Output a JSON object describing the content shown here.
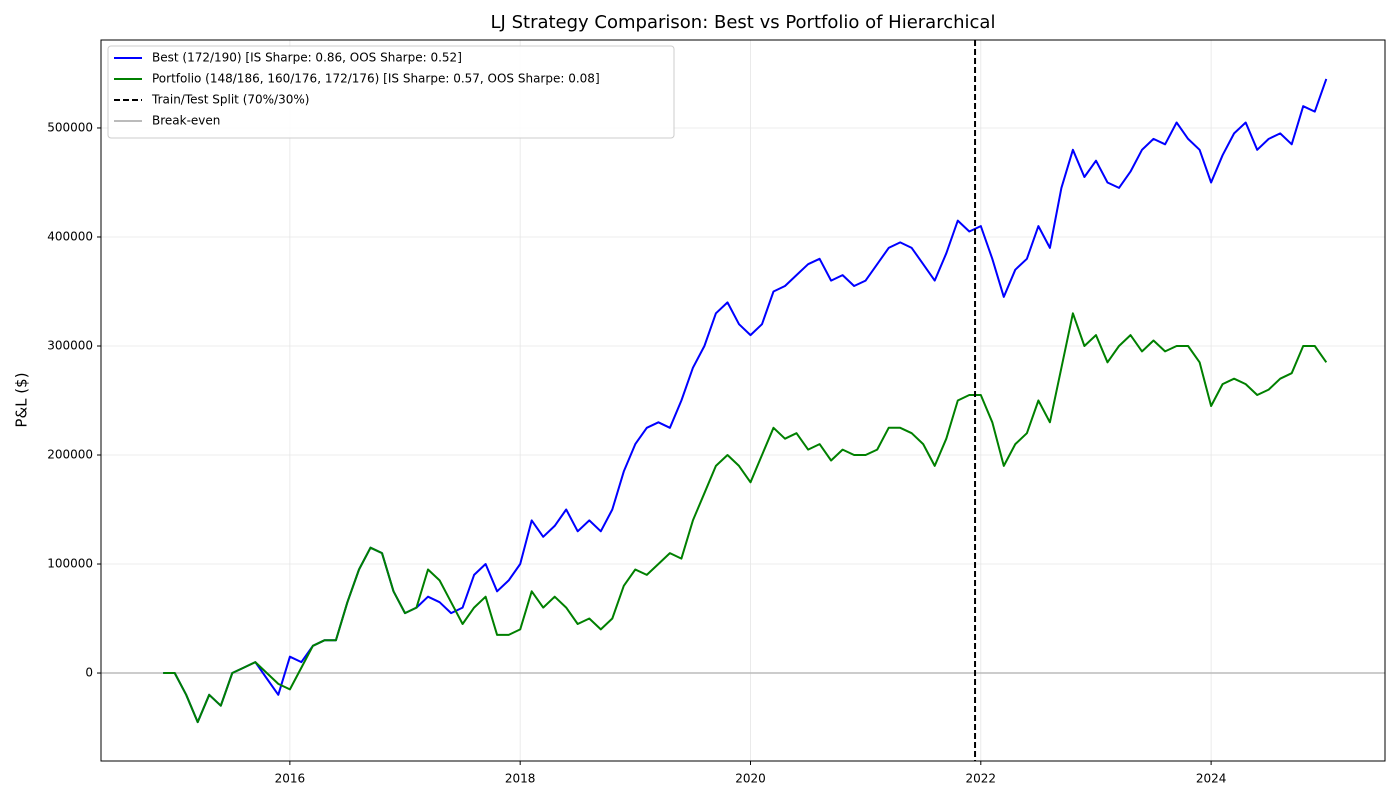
{
  "chart_data": {
    "type": "line",
    "title": "LJ Strategy Comparison: Best vs Portfolio of Hierarchical",
    "y_label": "P&L ($)",
    "x": [
      2014.9,
      2015.0,
      2015.1,
      2015.2,
      2015.3,
      2015.4,
      2015.5,
      2015.6,
      2015.7,
      2015.8,
      2015.9,
      2016.0,
      2016.1,
      2016.2,
      2016.3,
      2016.4,
      2016.5,
      2016.6,
      2016.7,
      2016.8,
      2016.9,
      2017.0,
      2017.1,
      2017.2,
      2017.3,
      2017.4,
      2017.5,
      2017.6,
      2017.7,
      2017.8,
      2017.9,
      2018.0,
      2018.1,
      2018.2,
      2018.3,
      2018.4,
      2018.5,
      2018.6,
      2018.7,
      2018.8,
      2018.9,
      2019.0,
      2019.1,
      2019.2,
      2019.3,
      2019.4,
      2019.5,
      2019.6,
      2019.7,
      2019.8,
      2019.9,
      2020.0,
      2020.1,
      2020.2,
      2020.3,
      2020.4,
      2020.5,
      2020.6,
      2020.7,
      2020.8,
      2020.9,
      2021.0,
      2021.1,
      2021.2,
      2021.3,
      2021.4,
      2021.5,
      2021.6,
      2021.7,
      2021.8,
      2021.9,
      2022.0,
      2022.1,
      2022.2,
      2022.3,
      2022.4,
      2022.5,
      2022.6,
      2022.7,
      2022.8,
      2022.9,
      2023.0,
      2023.1,
      2023.2,
      2023.3,
      2023.4,
      2023.5,
      2023.6,
      2023.7,
      2023.8,
      2023.9,
      2024.0,
      2024.1,
      2024.2,
      2024.3,
      2024.4,
      2024.5,
      2024.6,
      2024.7,
      2024.8,
      2024.9,
      2025.0
    ],
    "series": [
      {
        "name": "Best (172/190) [IS Sharpe: 0.86, OOS Sharpe: 0.52]",
        "color": "#0000ff",
        "values": [
          0,
          0,
          -20000,
          -45000,
          -20000,
          -30000,
          0,
          5000,
          10000,
          -5000,
          -20000,
          15000,
          10000,
          25000,
          30000,
          30000,
          65000,
          95000,
          115000,
          110000,
          75000,
          55000,
          60000,
          70000,
          65000,
          55000,
          60000,
          90000,
          100000,
          75000,
          85000,
          100000,
          140000,
          125000,
          135000,
          150000,
          130000,
          140000,
          130000,
          150000,
          185000,
          210000,
          225000,
          230000,
          225000,
          250000,
          280000,
          300000,
          330000,
          340000,
          320000,
          310000,
          320000,
          350000,
          355000,
          365000,
          375000,
          380000,
          360000,
          365000,
          355000,
          360000,
          375000,
          390000,
          395000,
          390000,
          375000,
          360000,
          385000,
          415000,
          405000,
          410000,
          380000,
          345000,
          370000,
          380000,
          410000,
          390000,
          445000,
          480000,
          455000,
          470000,
          450000,
          445000,
          460000,
          480000,
          490000,
          485000,
          505000,
          490000,
          480000,
          450000,
          475000,
          495000,
          505000,
          480000,
          490000,
          495000,
          485000,
          520000,
          515000,
          545000
        ]
      },
      {
        "name": "Portfolio (148/186, 160/176, 172/176) [IS Sharpe: 0.57, OOS Sharpe: 0.08]",
        "color": "#008000",
        "values": [
          0,
          0,
          -20000,
          -45000,
          -20000,
          -30000,
          0,
          5000,
          10000,
          0,
          -10000,
          -15000,
          5000,
          25000,
          30000,
          30000,
          65000,
          95000,
          115000,
          110000,
          75000,
          55000,
          60000,
          95000,
          85000,
          65000,
          45000,
          60000,
          70000,
          35000,
          35000,
          40000,
          75000,
          60000,
          70000,
          60000,
          45000,
          50000,
          40000,
          50000,
          80000,
          95000,
          90000,
          100000,
          110000,
          105000,
          140000,
          165000,
          190000,
          200000,
          190000,
          175000,
          200000,
          225000,
          215000,
          220000,
          205000,
          210000,
          195000,
          205000,
          200000,
          200000,
          205000,
          225000,
          225000,
          220000,
          210000,
          190000,
          215000,
          250000,
          255000,
          255000,
          230000,
          190000,
          210000,
          220000,
          250000,
          230000,
          280000,
          330000,
          300000,
          310000,
          285000,
          300000,
          310000,
          295000,
          305000,
          295000,
          300000,
          300000,
          285000,
          245000,
          265000,
          270000,
          265000,
          255000,
          260000,
          270000,
          275000,
          300000,
          300000,
          285000
        ]
      }
    ],
    "vlines": [
      {
        "name": "Train/Test Split (70%/30%)",
        "x": 2021.95,
        "color": "#000000"
      }
    ],
    "hlines": [
      {
        "name": "Break-even",
        "y": 0,
        "color": "#bbbbbb"
      }
    ],
    "xlim": [
      2014.36,
      2025.51
    ],
    "ylim": [
      -80700,
      580700
    ],
    "xticks": [
      2016,
      2018,
      2020,
      2022,
      2024
    ],
    "yticks": [
      0,
      100000,
      200000,
      300000,
      400000,
      500000
    ],
    "grid": true,
    "legend": "upper left"
  }
}
